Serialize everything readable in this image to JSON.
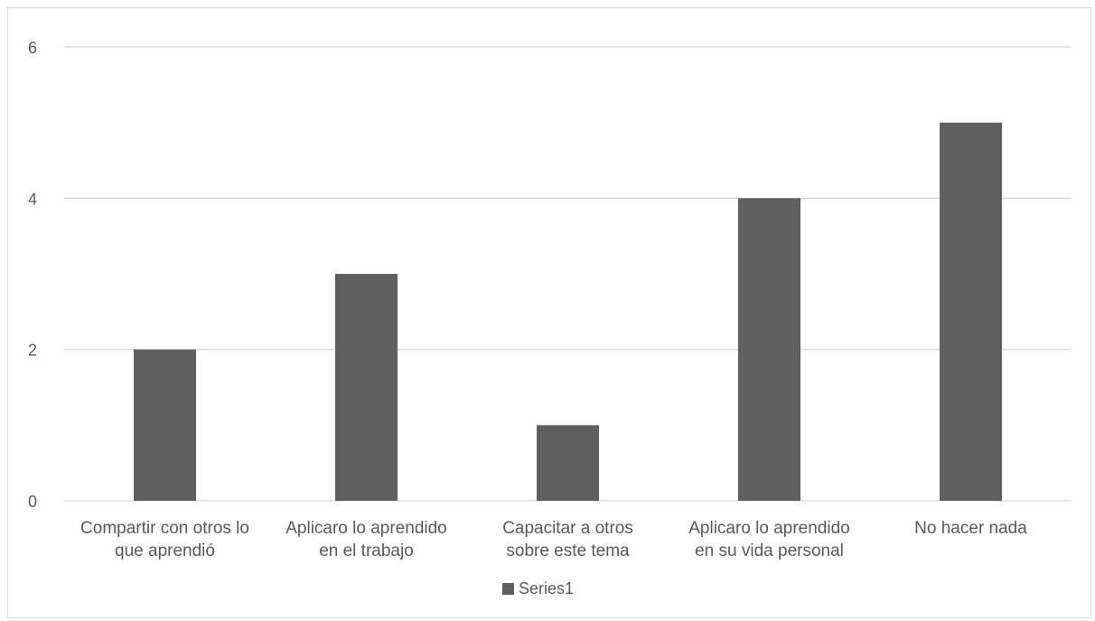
{
  "chart_data": {
    "type": "bar",
    "categories": [
      [
        "Compartir con otros lo",
        "que aprendió"
      ],
      [
        "Aplicaro lo aprendido",
        "en el trabajo"
      ],
      [
        "Capacitar a otros",
        "sobre este tema"
      ],
      [
        "Aplicaro lo aprendido",
        "en su vida personal"
      ],
      [
        "No hacer nada"
      ]
    ],
    "series": [
      {
        "name": "Series1",
        "values": [
          2,
          3,
          1,
          4,
          5
        ],
        "color": "#5f5f5f"
      }
    ],
    "ylim": [
      0,
      6
    ],
    "yticks": [
      0,
      2,
      4,
      6
    ],
    "grid": true,
    "legend_position": "bottom",
    "gridline_color": "#d9d9d9",
    "text_color": "#595959"
  }
}
